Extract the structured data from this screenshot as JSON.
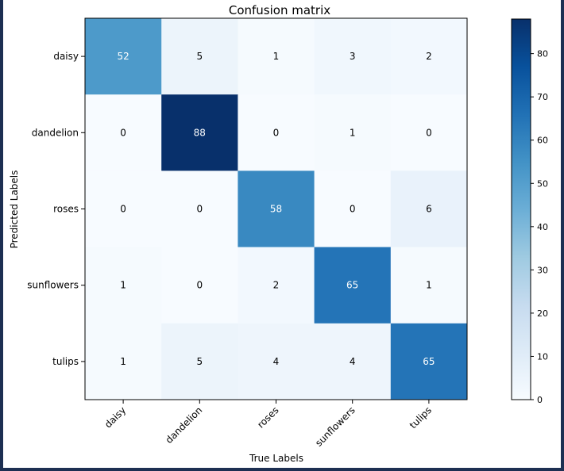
{
  "chart_data": {
    "type": "heatmap",
    "title": "Confusion matrix",
    "xlabel": "True Labels",
    "ylabel": "Predicted Labels",
    "classes": [
      "daisy",
      "dandelion",
      "roses",
      "sunflowers",
      "tulips"
    ],
    "matrix": [
      [
        52,
        5,
        1,
        3,
        2
      ],
      [
        0,
        88,
        0,
        1,
        0
      ],
      [
        0,
        0,
        58,
        0,
        6
      ],
      [
        1,
        0,
        2,
        65,
        1
      ],
      [
        1,
        5,
        4,
        4,
        65
      ]
    ],
    "colorbar": {
      "min": 0,
      "max": 88,
      "ticks": [
        0,
        10,
        20,
        30,
        40,
        50,
        60,
        70,
        80
      ],
      "colormap": "Blues"
    },
    "text_colors": {
      "light": "#ffffff",
      "dark": "#000000"
    }
  }
}
